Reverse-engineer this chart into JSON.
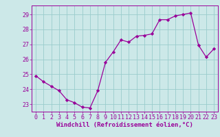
{
  "x": [
    0,
    1,
    2,
    3,
    4,
    5,
    6,
    7,
    8,
    9,
    10,
    11,
    12,
    13,
    14,
    15,
    16,
    17,
    18,
    19,
    20,
    21,
    22,
    23
  ],
  "y": [
    24.9,
    24.5,
    24.2,
    23.9,
    23.3,
    23.1,
    22.8,
    22.75,
    23.9,
    25.8,
    26.5,
    27.3,
    27.15,
    27.55,
    27.6,
    27.7,
    28.65,
    28.65,
    28.9,
    29.0,
    29.1,
    26.95,
    26.15,
    26.7
  ],
  "line_color": "#990099",
  "marker": "D",
  "markersize": 2.2,
  "linewidth": 0.9,
  "background_color": "#cce8e8",
  "grid_color": "#99cccc",
  "xlabel": "Windchill (Refroidissement éolien,°C)",
  "xlabel_fontsize": 6.5,
  "yticks": [
    23,
    24,
    25,
    26,
    27,
    28,
    29
  ],
  "ylim": [
    22.5,
    29.6
  ],
  "xlim": [
    -0.5,
    23.5
  ],
  "xtick_labels": [
    "0",
    "1",
    "2",
    "3",
    "4",
    "5",
    "6",
    "7",
    "8",
    "9",
    "10",
    "11",
    "12",
    "13",
    "14",
    "15",
    "16",
    "17",
    "18",
    "19",
    "20",
    "21",
    "22",
    "23"
  ],
  "tick_fontsize": 6.0
}
